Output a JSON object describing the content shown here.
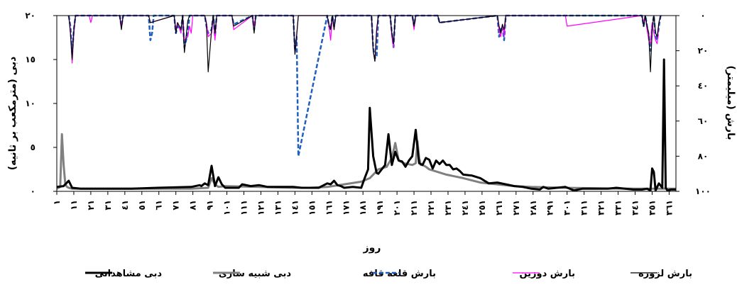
{
  "chart_data": {
    "type": "line",
    "title": "",
    "xlabel": "روز",
    "ylabel_left": "دبی (مترمکعب بر ثانیه)",
    "ylabel_right": "بارش (میلیمتر)",
    "ylim_left": [
      0,
      20
    ],
    "ylim_right": [
      100,
      0
    ],
    "right_axis_inverted": true,
    "yticks_left": [
      "٠",
      "٥",
      "١٠",
      "١٥",
      "٢٠"
    ],
    "yticks_left_values": [
      0,
      5,
      10,
      15,
      20
    ],
    "yticks_right": [
      "٠",
      "٢٠",
      "٤٠",
      "٦٠",
      "٨٠",
      "١٠٠"
    ],
    "yticks_right_values": [
      0,
      20,
      40,
      60,
      80,
      100
    ],
    "x_range": [
      1,
      365
    ],
    "x_ticks": [
      "١",
      "١١",
      "٢١",
      "٣١",
      "٤١",
      "٥١",
      "٦١",
      "٧١",
      "٨١",
      "٩١",
      "١٠١",
      "١١١",
      "١٢١",
      "١٣١",
      "١٤١",
      "١٥١",
      "١٦١",
      "١٧١",
      "١٨١",
      "١٩١",
      "٢٠١",
      "٢١١",
      "٢٢١",
      "٢٣١",
      "٢٤١",
      "٢٥١",
      "٢٦١",
      "٢٧١",
      "٢٨١",
      "٢٩١",
      "٣٠١",
      "٣١١",
      "٣٢١",
      "٣٣١",
      "٣٤١",
      "٣٥١",
      "٣٦١"
    ],
    "x_tick_values": [
      1,
      11,
      21,
      31,
      41,
      51,
      61,
      71,
      81,
      91,
      101,
      111,
      121,
      131,
      141,
      151,
      161,
      171,
      181,
      191,
      201,
      211,
      221,
      231,
      241,
      251,
      261,
      271,
      281,
      291,
      301,
      311,
      321,
      331,
      341,
      351,
      361
    ],
    "grid": false,
    "legend_position": "bottom",
    "legend": [
      "بارش لزوره",
      "بارش دوزین",
      "بارش قلعه قافه",
      "دبی شبیه سازی",
      "دبی مشاهداتی"
    ],
    "series": [
      {
        "name": "دبی مشاهداتی",
        "axis": "left",
        "color": "#000000",
        "style": "solid-thick",
        "x": [
          1,
          5,
          8,
          10,
          15,
          25,
          30,
          45,
          60,
          80,
          85,
          86,
          88,
          90,
          92,
          94,
          95,
          96,
          98,
          100,
          102,
          104,
          108,
          110,
          115,
          120,
          125,
          130,
          140,
          145,
          155,
          160,
          162,
          164,
          166,
          168,
          170,
          175,
          180,
          182,
          184,
          185,
          187,
          189,
          190,
          192,
          194,
          196,
          198,
          200,
          202,
          204,
          206,
          208,
          210,
          212,
          214,
          216,
          218,
          220,
          222,
          224,
          226,
          228,
          230,
          232,
          234,
          236,
          238,
          240,
          245,
          250,
          255,
          260,
          265,
          270,
          275,
          280,
          285,
          287,
          290,
          295,
          300,
          305,
          310,
          315,
          320,
          325,
          330,
          335,
          340,
          345,
          348,
          350,
          351,
          352,
          353,
          355,
          357,
          358,
          359,
          360,
          362,
          365
        ],
        "y": [
          0.5,
          0.6,
          1.2,
          0.4,
          0.3,
          0.3,
          0.3,
          0.3,
          0.4,
          0.5,
          0.7,
          0.6,
          0.9,
          0.7,
          2.9,
          0.6,
          1.1,
          1.6,
          0.8,
          0.4,
          0.4,
          0.4,
          0.4,
          0.8,
          0.6,
          0.7,
          0.5,
          0.5,
          0.5,
          0.4,
          0.4,
          0.9,
          0.8,
          1.2,
          0.7,
          0.6,
          0.4,
          0.5,
          0.4,
          1.5,
          2.5,
          9.5,
          4.0,
          2.1,
          2.0,
          2.5,
          3.0,
          6.5,
          3.0,
          4.5,
          3.5,
          3.4,
          2.8,
          3.5,
          4.0,
          7.0,
          3.2,
          3.0,
          3.8,
          3.6,
          2.6,
          3.5,
          3.1,
          3.5,
          3.0,
          3.0,
          2.5,
          2.6,
          2.3,
          1.9,
          1.8,
          1.5,
          0.9,
          1.0,
          0.8,
          0.6,
          0.5,
          0.3,
          0.2,
          0.5,
          0.3,
          0.4,
          0.5,
          0.1,
          0.3,
          0.3,
          0.3,
          0.3,
          0.4,
          0.3,
          0.2,
          0.2,
          0.3,
          0.1,
          2.6,
          2.2,
          0.1,
          0.9,
          0.4,
          15.0,
          0.4,
          0.1,
          0.2,
          0.2
        ]
      },
      {
        "name": "دبی شبیه سازی",
        "axis": "left",
        "color": "#808080",
        "style": "solid-thick",
        "x": [
          1,
          3,
          4,
          5,
          6,
          7,
          8,
          10,
          20,
          40,
          60,
          80,
          90,
          92,
          94,
          96,
          100,
          120,
          140,
          150,
          160,
          170,
          180,
          185,
          190,
          195,
          198,
          200,
          202,
          205,
          210,
          212,
          213,
          214,
          215,
          216,
          218,
          220,
          225,
          230,
          240,
          250,
          260,
          270,
          280,
          300,
          320,
          340,
          360,
          365
        ],
        "y": [
          0.3,
          0.5,
          6.5,
          3.0,
          0.8,
          0.5,
          0.4,
          0.3,
          0.3,
          0.3,
          0.3,
          0.3,
          0.4,
          1.5,
          0.8,
          0.5,
          0.6,
          0.5,
          0.4,
          0.4,
          0.5,
          0.8,
          1.1,
          1.5,
          2.5,
          2.8,
          3.8,
          5.5,
          3.5,
          3.2,
          3.0,
          3.2,
          5.7,
          3.8,
          3.0,
          3.0,
          2.8,
          2.5,
          2.2,
          1.9,
          1.5,
          1.0,
          0.8,
          0.6,
          0.5,
          0.4,
          0.35,
          0.3,
          0.3,
          0.3
        ]
      },
      {
        "name": "بارش لزوره",
        "axis": "right",
        "color": "#000000",
        "style": "solid-thin",
        "x": [
          8,
          9,
          10,
          11,
          12,
          38,
          39,
          40,
          55,
          56,
          70,
          71,
          72,
          74,
          75,
          76,
          78,
          79,
          80,
          88,
          89,
          90,
          92,
          93,
          94,
          95,
          104,
          105,
          116,
          117,
          118,
          140,
          141,
          142,
          143,
          160,
          161,
          162,
          163,
          164,
          165,
          186,
          187,
          188,
          189,
          190,
          197,
          198,
          199,
          200,
          210,
          211,
          212,
          225,
          226,
          260,
          261,
          262,
          263,
          264,
          265,
          345,
          346,
          347,
          348,
          349,
          350,
          351,
          352,
          353,
          354,
          355,
          356
        ],
        "y": [
          0,
          10,
          25,
          8,
          0,
          0,
          8,
          0,
          0,
          4,
          0,
          10,
          4,
          8,
          0,
          21,
          3,
          0,
          0,
          0,
          5,
          32,
          8,
          0,
          10,
          0,
          0,
          6,
          0,
          10,
          0,
          0,
          22,
          11,
          0,
          0,
          5,
          8,
          0,
          8,
          0,
          0,
          20,
          26,
          8,
          0,
          0,
          10,
          16,
          0,
          0,
          6,
          0,
          0,
          4,
          0,
          6,
          10,
          5,
          8,
          0,
          0,
          6,
          0,
          6,
          10,
          32,
          8,
          0,
          10,
          12,
          4,
          0
        ]
      },
      {
        "name": "بارش دوزین",
        "axis": "right",
        "color": "#ff00ff",
        "style": "solid-thin",
        "x": [
          8,
          9,
          10,
          11,
          12,
          20,
          21,
          22,
          38,
          39,
          40,
          55,
          56,
          70,
          71,
          72,
          74,
          75,
          76,
          78,
          79,
          80,
          81,
          88,
          89,
          90,
          92,
          93,
          94,
          95,
          104,
          105,
          116,
          117,
          118,
          140,
          141,
          142,
          143,
          160,
          161,
          162,
          163,
          164,
          165,
          186,
          187,
          188,
          189,
          190,
          197,
          198,
          199,
          200,
          210,
          211,
          212,
          225,
          226,
          260,
          261,
          262,
          263,
          264,
          265,
          300,
          301,
          345,
          346,
          347,
          348,
          349,
          350,
          351,
          352,
          353,
          354,
          355,
          356,
          357
        ],
        "y": [
          0,
          8,
          27,
          10,
          0,
          0,
          4,
          0,
          0,
          6,
          0,
          0,
          4,
          0,
          8,
          4,
          10,
          0,
          14,
          12,
          6,
          10,
          0,
          0,
          4,
          12,
          10,
          0,
          14,
          0,
          0,
          8,
          0,
          6,
          0,
          0,
          22,
          12,
          0,
          0,
          6,
          14,
          0,
          8,
          0,
          0,
          20,
          26,
          10,
          0,
          0,
          12,
          18,
          0,
          0,
          8,
          0,
          0,
          4,
          0,
          8,
          12,
          5,
          12,
          0,
          0,
          6,
          0,
          4,
          0,
          8,
          14,
          16,
          4,
          10,
          14,
          16,
          4,
          0,
          0
        ]
      },
      {
        "name": "بارش قلعه قافه",
        "axis": "right",
        "color": "#1f5fbf",
        "style": "dashed",
        "x": [
          8,
          9,
          10,
          11,
          12,
          38,
          39,
          40,
          55,
          56,
          57,
          58,
          70,
          71,
          72,
          74,
          75,
          76,
          78,
          79,
          80,
          88,
          89,
          90,
          92,
          93,
          94,
          95,
          104,
          105,
          116,
          117,
          118,
          140,
          141,
          142,
          143,
          160,
          161,
          162,
          163,
          164,
          165,
          186,
          187,
          188,
          189,
          190,
          197,
          198,
          199,
          200,
          210,
          211,
          212,
          225,
          226,
          260,
          261,
          262,
          263,
          264,
          265,
          345,
          346,
          347,
          348,
          349,
          350,
          351,
          352,
          353,
          354,
          355,
          356
        ],
        "y": [
          0,
          6,
          22,
          8,
          0,
          0,
          6,
          0,
          0,
          14,
          10,
          0,
          0,
          10,
          6,
          8,
          0,
          18,
          10,
          0,
          0,
          0,
          6,
          10,
          8,
          0,
          12,
          0,
          0,
          5,
          0,
          8,
          0,
          0,
          20,
          12,
          80,
          0,
          6,
          8,
          0,
          6,
          0,
          0,
          18,
          24,
          24,
          0,
          0,
          10,
          18,
          0,
          0,
          6,
          0,
          0,
          4,
          0,
          12,
          8,
          6,
          14,
          0,
          0,
          6,
          0,
          6,
          12,
          20,
          6,
          0,
          12,
          14,
          6,
          0
        ]
      }
    ]
  }
}
